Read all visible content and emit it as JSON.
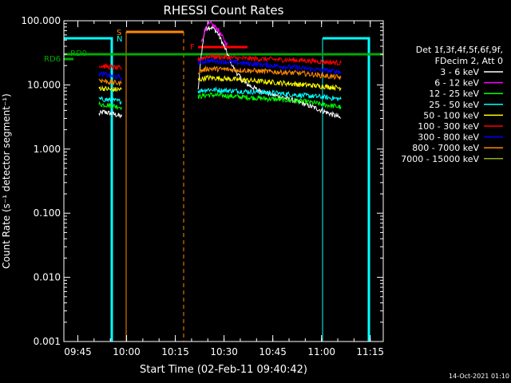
{
  "chart_data": {
    "type": "line",
    "title": "RHESSI Count Rates",
    "xlabel": "Start Time (02-Feb-11 09:40:42)",
    "ylabel": "Count Rate (s⁻¹ detector segment⁻¹)",
    "yscale": "log",
    "ylim": [
      0.001,
      100
    ],
    "xlim": [
      "09:40:42",
      "11:19:00"
    ],
    "x_ticks": [
      "09:45",
      "10:00",
      "10:15",
      "10:30",
      "10:45",
      "11:00",
      "11:15"
    ],
    "y_ticks": [
      "0.001",
      "0.010",
      "0.100",
      "1.000",
      "10.000",
      "100.000"
    ],
    "legend_header": [
      "Det 1f,3f,4f,5f,6f,9f,",
      "FDecim 2, Att 0"
    ],
    "legend_position": "right",
    "series": [
      {
        "name": "3 - 6 keV",
        "color": "#ffffff",
        "segments": [
          {
            "t": [
              "09:51:30",
              "09:53:00",
              "09:55:00",
              "09:57:00",
              "09:58:30"
            ],
            "y": [
              3.5,
              3.8,
              3.6,
              3.4,
              3.2
            ]
          },
          {
            "t": [
              "10:22:00",
              "10:23:00",
              "10:24:00",
              "10:25:00",
              "10:26:30",
              "10:28:00",
              "10:30:00",
              "10:33:00",
              "10:36:00",
              "10:40:00",
              "10:45:00",
              "10:50:00",
              "10:55:00",
              "11:00:00",
              "11:05:00",
              "11:06:00"
            ],
            "y": [
              8,
              30,
              70,
              80,
              78,
              65,
              40,
              18,
              11,
              8.5,
              7,
              6,
              5,
              4,
              3.2,
              3
            ]
          }
        ]
      },
      {
        "name": "6 - 12 keV",
        "color": "#ff00ff",
        "segments": [
          {
            "t": [
              "10:23:00",
              "10:24:00",
              "10:25:00",
              "10:26:00",
              "10:28:00",
              "10:30:00",
              "10:31:00"
            ],
            "y": [
              45,
              70,
              85,
              90,
              75,
              50,
              42
            ]
          }
        ]
      },
      {
        "name": "12 - 25 keV",
        "color": "#00ff00",
        "segments": [
          {
            "t": [
              "09:51:30",
              "09:55:00",
              "09:58:30"
            ],
            "y": [
              5,
              4.8,
              4.5
            ]
          },
          {
            "t": [
              "10:22:00",
              "10:25:00",
              "10:30:00",
              "10:35:00",
              "10:45:00",
              "10:55:00",
              "11:00:00",
              "11:06:00"
            ],
            "y": [
              6.5,
              7,
              6.8,
              6.5,
              6,
              5.5,
              5,
              4.5
            ]
          }
        ]
      },
      {
        "name": "25 - 50 keV",
        "color": "#00ffff",
        "segments": [
          {
            "t": [
              "09:51:30",
              "09:55:00",
              "09:58:30"
            ],
            "y": [
              6,
              5.8,
              5.5
            ]
          },
          {
            "t": [
              "10:22:00",
              "10:25:00",
              "10:30:00",
              "10:35:00",
              "10:45:00",
              "10:55:00",
              "11:00:00",
              "11:06:00"
            ],
            "y": [
              8,
              8.5,
              8.2,
              8,
              7.5,
              6.8,
              6.5,
              6
            ]
          }
        ]
      },
      {
        "name": "50 - 100 keV",
        "color": "#ffff00",
        "segments": [
          {
            "t": [
              "09:51:30",
              "09:55:00",
              "09:58:30"
            ],
            "y": [
              9,
              8.5,
              8.5
            ]
          },
          {
            "t": [
              "10:22:00",
              "10:25:00",
              "10:30:00",
              "10:35:00",
              "10:45:00",
              "10:55:00",
              "11:00:00",
              "11:06:00"
            ],
            "y": [
              12,
              13,
              12.5,
              12,
              11,
              10,
              9.5,
              9
            ]
          }
        ]
      },
      {
        "name": "100 - 300 keV",
        "color": "#ff0000",
        "segments": [
          {
            "t": [
              "09:51:30",
              "09:55:00",
              "09:58:30"
            ],
            "y": [
              20,
              19,
              18
            ]
          },
          {
            "t": [
              "10:22:00",
              "10:25:00",
              "10:30:00",
              "10:35:00",
              "10:45:00",
              "10:55:00",
              "11:00:00",
              "11:06:00"
            ],
            "y": [
              25,
              28,
              27,
              26,
              25,
              24,
              23,
              22
            ]
          }
        ]
      },
      {
        "name": "300 - 800 keV",
        "color": "#0000ff",
        "segments": [
          {
            "t": [
              "09:51:30",
              "09:55:00",
              "09:58:30"
            ],
            "y": [
              15,
              14,
              13
            ]
          },
          {
            "t": [
              "10:22:00",
              "10:25:00",
              "10:30:00",
              "10:35:00",
              "10:45:00",
              "10:55:00",
              "11:00:00",
              "11:06:00"
            ],
            "y": [
              22,
              24,
              23,
              22,
              20,
              18,
              17,
              16
            ]
          }
        ]
      },
      {
        "name": "800 - 7000 keV",
        "color": "#ff8800",
        "segments": [
          {
            "t": [
              "09:51:30",
              "09:55:00",
              "09:58:30"
            ],
            "y": [
              12,
              11,
              10.5
            ]
          },
          {
            "t": [
              "10:22:00",
              "10:25:00",
              "10:30:00",
              "10:35:00",
              "10:45:00",
              "10:55:00",
              "11:00:00",
              "11:06:00"
            ],
            "y": [
              16,
              18,
              17.5,
              17,
              16,
              15,
              14,
              13
            ]
          }
        ]
      },
      {
        "name": "7000 - 15000 keV",
        "color": "#99aa22",
        "segments": []
      }
    ],
    "annotations": {
      "flags": [
        {
          "label": "RD0",
          "color": "#00aa00",
          "t": [
            "09:40:42",
            "11:19:00"
          ],
          "y": 30
        },
        {
          "label": "RD6",
          "color": "#00aa00",
          "t": [
            "09:40:42",
            "09:43:00"
          ],
          "y": 25
        },
        {
          "label": "S",
          "color": "#ff8800"
        },
        {
          "label": "N",
          "color": "#00ffff"
        },
        {
          "label": "F",
          "color": "#ff0000"
        }
      ]
    }
  },
  "footer_timestamp": "14-Oct-2021 01:10"
}
